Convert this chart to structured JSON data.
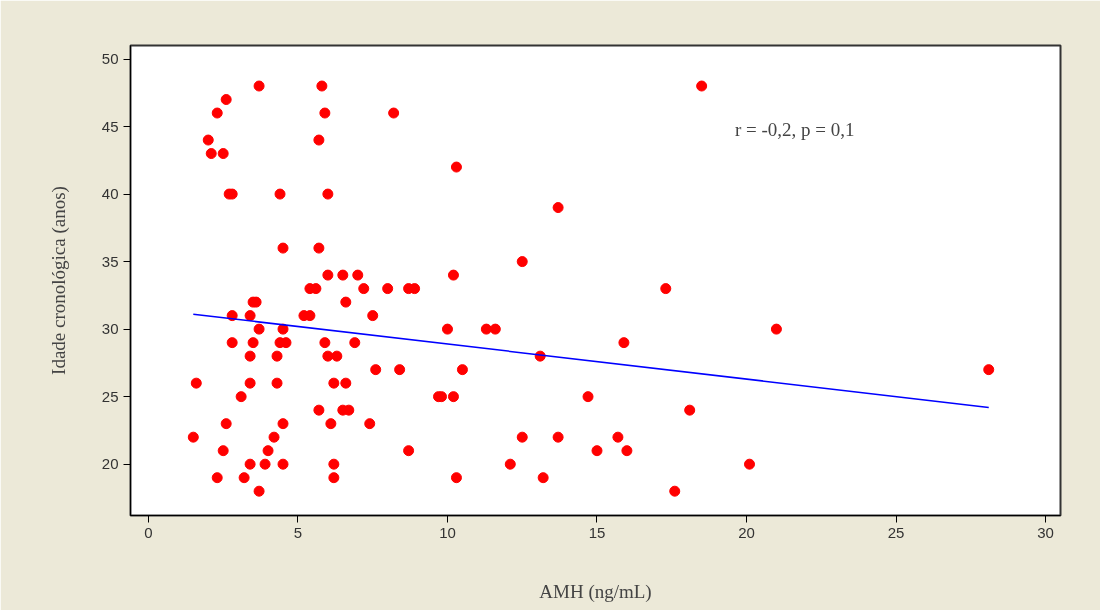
{
  "chart_data": {
    "type": "scatter",
    "xlabel": "AMH (ng/mL)",
    "ylabel": "Idade cronológica (anos)",
    "annotations": [
      "r = -0,2, p = 0,1"
    ],
    "xlim": [
      -0.6,
      30.5
    ],
    "ylim": [
      16.2,
      51
    ],
    "xticks": [
      0,
      5,
      10,
      15,
      20,
      25,
      30
    ],
    "yticks": [
      20,
      25,
      30,
      35,
      40,
      45,
      50
    ],
    "grid": false,
    "series": [
      {
        "marker": "circle",
        "color": "#ff0000",
        "x": [
          1.5,
          1.6,
          2.0,
          2.1,
          2.3,
          2.5,
          2.6,
          2.3,
          2.5,
          2.6,
          2.7,
          2.8,
          2.8,
          2.8,
          3.1,
          3.2,
          3.4,
          3.4,
          3.4,
          3.4,
          3.5,
          3.5,
          3.6,
          3.7,
          3.7,
          3.7,
          3.9,
          4.0,
          4.2,
          4.3,
          4.3,
          4.4,
          4.4,
          4.5,
          4.5,
          4.5,
          4.5,
          4.6,
          5.2,
          5.4,
          5.4,
          5.6,
          5.7,
          5.7,
          5.7,
          5.8,
          5.9,
          5.9,
          6.0,
          6.0,
          6.0,
          6.1,
          6.2,
          6.2,
          6.2,
          6.3,
          6.5,
          6.5,
          6.6,
          6.6,
          6.7,
          6.9,
          7.0,
          7.2,
          7.4,
          7.5,
          7.6,
          8.0,
          8.2,
          8.4,
          8.7,
          8.7,
          8.9,
          9.7,
          9.8,
          10.0,
          10.2,
          10.2,
          10.3,
          10.3,
          10.5,
          11.3,
          11.6,
          12.1,
          12.5,
          12.5,
          13.1,
          13.2,
          13.7,
          13.7,
          14.7,
          15.0,
          15.7,
          15.9,
          16.0,
          17.3,
          17.6,
          18.1,
          18.5,
          20.1,
          21.0,
          28.1
        ],
        "values": [
          22,
          26,
          44,
          43,
          46,
          43,
          47,
          19,
          21,
          23,
          40,
          40,
          31,
          29,
          25,
          19,
          31,
          20,
          26,
          28,
          29,
          32,
          32,
          48,
          30,
          18,
          20,
          21,
          22,
          28,
          26,
          40,
          29,
          30,
          36,
          23,
          20,
          29,
          31,
          31,
          33,
          33,
          36,
          44,
          24,
          48,
          29,
          46,
          40,
          28,
          34,
          23,
          26,
          20,
          19,
          28,
          24,
          34,
          32,
          26,
          24,
          29,
          34,
          33,
          23,
          31,
          27,
          33,
          46,
          27,
          21,
          33,
          33,
          25,
          25,
          30,
          25,
          34,
          42,
          19,
          27,
          30,
          30,
          20,
          22,
          35,
          28,
          19,
          22,
          39,
          25,
          21,
          22,
          29,
          21,
          33,
          18,
          24,
          48,
          20,
          30,
          27
        ]
      },
      {
        "type": "line",
        "color": "#0000ff",
        "line_style": "solid",
        "x": [
          1.5,
          28.1
        ],
        "values": [
          31.1,
          24.2
        ]
      }
    ]
  }
}
